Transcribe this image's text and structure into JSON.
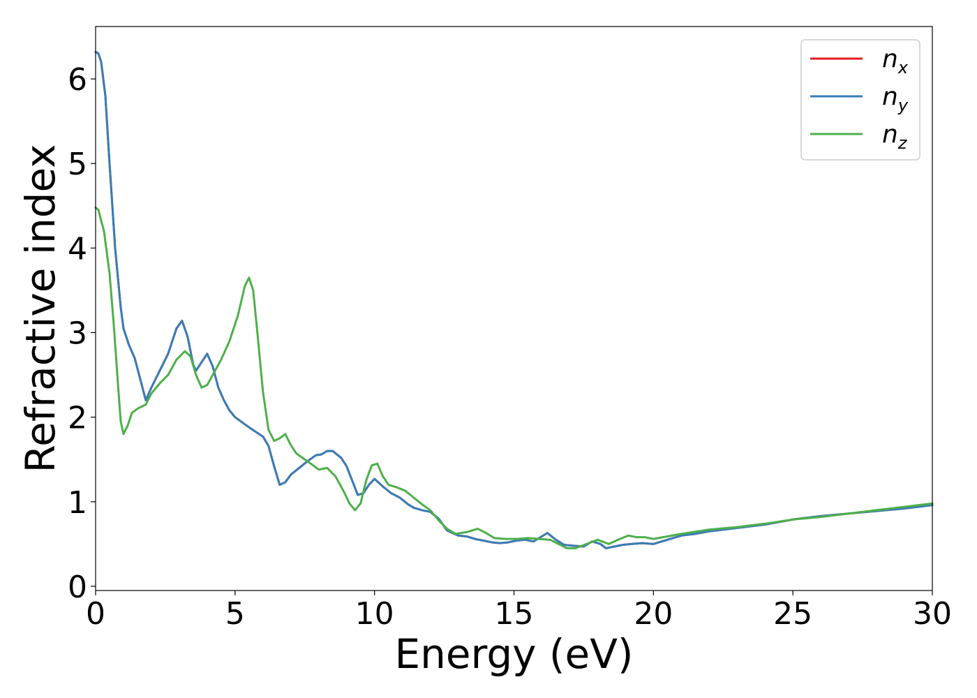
{
  "chart_data": {
    "type": "line",
    "title": "",
    "xlabel": "Energy (eV)",
    "ylabel": "Refractive index",
    "xlim": [
      0,
      30
    ],
    "ylim": [
      -0.05,
      6.62
    ],
    "xticks": [
      0,
      5,
      10,
      15,
      20,
      25,
      30
    ],
    "yticks": [
      0,
      1,
      2,
      3,
      4,
      5,
      6
    ],
    "xtick_labels": [
      "0",
      "5",
      "10",
      "15",
      "20",
      "25",
      "30"
    ],
    "ytick_labels": [
      "0",
      "1",
      "2",
      "3",
      "4",
      "5",
      "6"
    ],
    "grid": false,
    "legend_position": "top-right",
    "series": [
      {
        "name": "n_x",
        "label_base": "n",
        "label_sub": "x",
        "color": "#e41a1c",
        "x": [
          0,
          0.1,
          0.2,
          0.35,
          0.5,
          0.7,
          0.9,
          1.0,
          1.2,
          1.4,
          1.6,
          1.8,
          2.0,
          2.3,
          2.6,
          2.9,
          3.1,
          3.3,
          3.5,
          3.6,
          3.8,
          4.0,
          4.2,
          4.4,
          4.6,
          4.8,
          5.0,
          5.5,
          6.0,
          6.2,
          6.4,
          6.6,
          6.8,
          7.0,
          7.3,
          7.6,
          7.9,
          8.1,
          8.3,
          8.5,
          8.8,
          9.0,
          9.2,
          9.4,
          9.6,
          9.8,
          10.0,
          10.3,
          10.6,
          10.9,
          11.2,
          11.4,
          11.7,
          12.0,
          12.3,
          12.6,
          13.0,
          13.3,
          13.6,
          13.9,
          14.2,
          14.5,
          14.8,
          15.1,
          15.4,
          15.7,
          15.9,
          16.2,
          16.5,
          16.8,
          17.1,
          17.5,
          17.8,
          18.1,
          18.3,
          18.6,
          18.9,
          19.2,
          19.6,
          20.0,
          20.5,
          21.0,
          21.5,
          22.0,
          23.0,
          24.0,
          25.0,
          26.0,
          27.0,
          28.0,
          29.0,
          30.0
        ],
        "y": [
          6.32,
          6.3,
          6.2,
          5.8,
          5.0,
          4.0,
          3.3,
          3.05,
          2.85,
          2.7,
          2.45,
          2.2,
          2.35,
          2.55,
          2.75,
          3.05,
          3.14,
          2.95,
          2.62,
          2.55,
          2.65,
          2.75,
          2.6,
          2.35,
          2.2,
          2.08,
          2.0,
          1.88,
          1.77,
          1.66,
          1.42,
          1.2,
          1.23,
          1.32,
          1.4,
          1.48,
          1.55,
          1.56,
          1.6,
          1.6,
          1.52,
          1.42,
          1.25,
          1.08,
          1.1,
          1.2,
          1.27,
          1.18,
          1.1,
          1.05,
          0.97,
          0.93,
          0.9,
          0.88,
          0.8,
          0.66,
          0.6,
          0.59,
          0.56,
          0.54,
          0.52,
          0.51,
          0.52,
          0.54,
          0.55,
          0.53,
          0.57,
          0.63,
          0.55,
          0.49,
          0.48,
          0.47,
          0.53,
          0.5,
          0.45,
          0.47,
          0.49,
          0.5,
          0.51,
          0.5,
          0.55,
          0.6,
          0.62,
          0.65,
          0.69,
          0.73,
          0.79,
          0.83,
          0.86,
          0.89,
          0.92,
          0.96
        ]
      },
      {
        "name": "n_y",
        "label_base": "n",
        "label_sub": "y",
        "color": "#377eb8",
        "x": [
          0,
          0.1,
          0.2,
          0.35,
          0.5,
          0.7,
          0.9,
          1.0,
          1.2,
          1.4,
          1.6,
          1.8,
          2.0,
          2.3,
          2.6,
          2.9,
          3.1,
          3.3,
          3.5,
          3.6,
          3.8,
          4.0,
          4.2,
          4.4,
          4.6,
          4.8,
          5.0,
          5.5,
          6.0,
          6.2,
          6.4,
          6.6,
          6.8,
          7.0,
          7.3,
          7.6,
          7.9,
          8.1,
          8.3,
          8.5,
          8.8,
          9.0,
          9.2,
          9.4,
          9.6,
          9.8,
          10.0,
          10.3,
          10.6,
          10.9,
          11.2,
          11.4,
          11.7,
          12.0,
          12.3,
          12.6,
          13.0,
          13.3,
          13.6,
          13.9,
          14.2,
          14.5,
          14.8,
          15.1,
          15.4,
          15.7,
          15.9,
          16.2,
          16.5,
          16.8,
          17.1,
          17.5,
          17.8,
          18.1,
          18.3,
          18.6,
          18.9,
          19.2,
          19.6,
          20.0,
          20.5,
          21.0,
          21.5,
          22.0,
          23.0,
          24.0,
          25.0,
          26.0,
          27.0,
          28.0,
          29.0,
          30.0
        ],
        "y": [
          6.32,
          6.3,
          6.2,
          5.8,
          5.0,
          4.0,
          3.3,
          3.05,
          2.85,
          2.7,
          2.45,
          2.2,
          2.35,
          2.55,
          2.75,
          3.05,
          3.14,
          2.95,
          2.62,
          2.55,
          2.65,
          2.75,
          2.6,
          2.35,
          2.2,
          2.08,
          2.0,
          1.88,
          1.77,
          1.66,
          1.42,
          1.2,
          1.23,
          1.32,
          1.4,
          1.48,
          1.55,
          1.56,
          1.6,
          1.6,
          1.52,
          1.42,
          1.25,
          1.08,
          1.1,
          1.2,
          1.27,
          1.18,
          1.1,
          1.05,
          0.97,
          0.93,
          0.9,
          0.88,
          0.8,
          0.66,
          0.6,
          0.59,
          0.56,
          0.54,
          0.52,
          0.51,
          0.52,
          0.54,
          0.55,
          0.53,
          0.57,
          0.63,
          0.55,
          0.49,
          0.48,
          0.47,
          0.53,
          0.5,
          0.45,
          0.47,
          0.49,
          0.5,
          0.51,
          0.5,
          0.55,
          0.6,
          0.62,
          0.65,
          0.69,
          0.73,
          0.79,
          0.83,
          0.86,
          0.89,
          0.92,
          0.96
        ]
      },
      {
        "name": "n_z",
        "label_base": "n",
        "label_sub": "z",
        "color": "#4daf4a",
        "x": [
          0,
          0.1,
          0.3,
          0.5,
          0.65,
          0.8,
          0.9,
          1.0,
          1.15,
          1.3,
          1.5,
          1.8,
          2.0,
          2.3,
          2.6,
          2.9,
          3.2,
          3.4,
          3.6,
          3.8,
          4.0,
          4.2,
          4.5,
          4.8,
          5.1,
          5.35,
          5.5,
          5.65,
          5.8,
          6.0,
          6.2,
          6.4,
          6.6,
          6.8,
          7.0,
          7.2,
          7.5,
          7.8,
          8.0,
          8.3,
          8.6,
          8.9,
          9.1,
          9.3,
          9.5,
          9.7,
          9.9,
          10.1,
          10.3,
          10.5,
          10.8,
          11.1,
          11.4,
          11.7,
          12.0,
          12.3,
          12.6,
          12.9,
          13.3,
          13.7,
          14.0,
          14.3,
          14.7,
          15.1,
          15.5,
          15.9,
          16.3,
          16.6,
          16.9,
          17.2,
          17.6,
          18.0,
          18.4,
          18.8,
          19.1,
          19.4,
          19.7,
          20.0,
          20.5,
          21.0,
          22.0,
          23.0,
          24.0,
          25.0,
          26.0,
          27.0,
          28.0,
          29.0,
          30.0
        ],
        "y": [
          4.48,
          4.45,
          4.2,
          3.7,
          3.1,
          2.4,
          1.95,
          1.8,
          1.9,
          2.05,
          2.1,
          2.15,
          2.28,
          2.4,
          2.5,
          2.68,
          2.78,
          2.72,
          2.5,
          2.35,
          2.38,
          2.5,
          2.68,
          2.9,
          3.2,
          3.55,
          3.65,
          3.5,
          3.0,
          2.3,
          1.85,
          1.72,
          1.75,
          1.8,
          1.67,
          1.57,
          1.5,
          1.43,
          1.38,
          1.4,
          1.3,
          1.12,
          0.98,
          0.9,
          0.98,
          1.25,
          1.43,
          1.45,
          1.3,
          1.2,
          1.17,
          1.13,
          1.05,
          0.97,
          0.9,
          0.78,
          0.68,
          0.62,
          0.64,
          0.68,
          0.63,
          0.57,
          0.56,
          0.56,
          0.57,
          0.56,
          0.55,
          0.5,
          0.45,
          0.45,
          0.5,
          0.55,
          0.5,
          0.56,
          0.6,
          0.58,
          0.58,
          0.56,
          0.59,
          0.62,
          0.67,
          0.7,
          0.74,
          0.79,
          0.82,
          0.86,
          0.9,
          0.94,
          0.98
        ]
      }
    ]
  }
}
